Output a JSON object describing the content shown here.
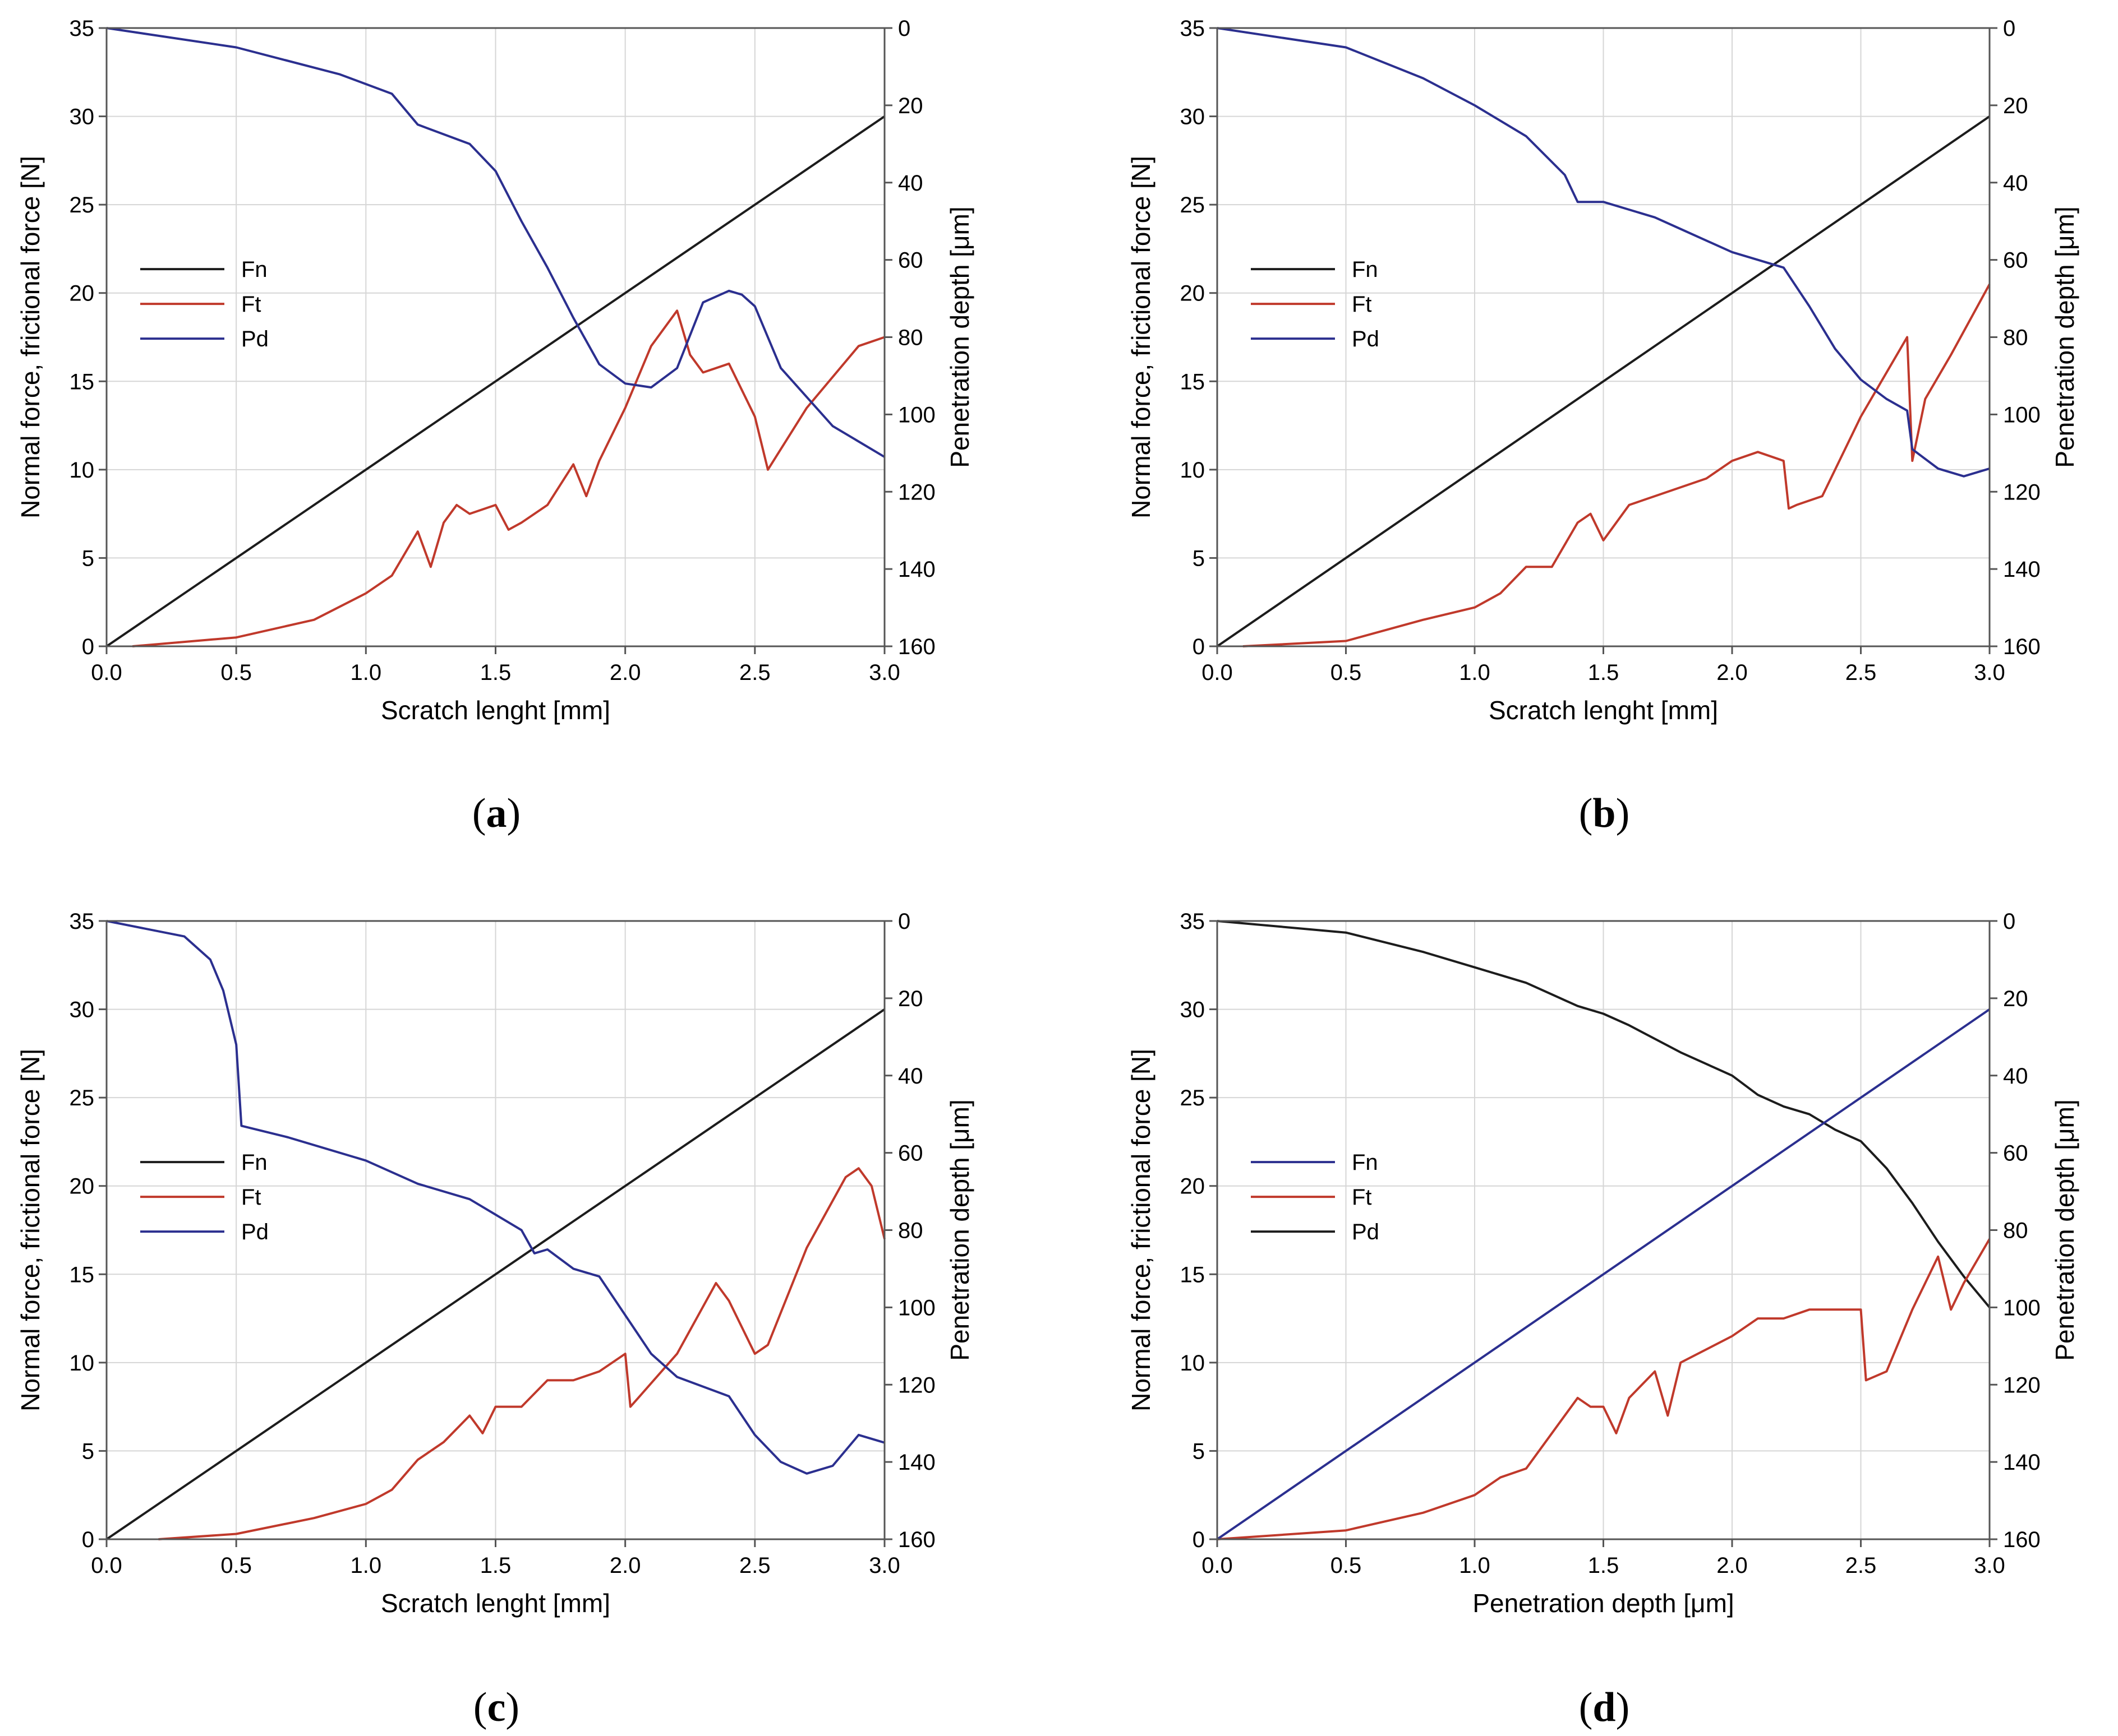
{
  "figure": {
    "panels": [
      {
        "id": "a",
        "caption_prefix": "(",
        "caption_letter": "a",
        "caption_suffix": ")"
      },
      {
        "id": "b",
        "caption_prefix": "(",
        "caption_letter": "b",
        "caption_suffix": ")"
      },
      {
        "id": "c",
        "caption_prefix": "(",
        "caption_letter": "c",
        "caption_suffix": ")"
      },
      {
        "id": "d",
        "caption_prefix": "(",
        "caption_letter": "d",
        "caption_suffix": ")"
      }
    ]
  },
  "chart_data": [
    {
      "panel": "a",
      "type": "line",
      "xlabel": "Scratch lenght [mm]",
      "ylabel": "Normal force, frictional force [N]",
      "y2label": "Penetration depth [μm]",
      "xlim": [
        0,
        3
      ],
      "ylim": [
        0,
        35
      ],
      "y2lim": [
        0,
        160
      ],
      "y2_inverted": true,
      "xticks": [
        "0.0",
        "0.5",
        "1.0",
        "1.5",
        "2.0",
        "2.5",
        "3.0"
      ],
      "yticks": [
        "0",
        "5",
        "10",
        "15",
        "20",
        "25",
        "30",
        "35"
      ],
      "y2ticks": [
        "0",
        "20",
        "40",
        "60",
        "80",
        "100",
        "120",
        "140",
        "160"
      ],
      "legend": [
        "Fn",
        "Ft",
        "Pd"
      ],
      "colors": {
        "Fn": "#1c1c1c",
        "Ft": "#c0392b",
        "Pd": "#2b2f8f"
      },
      "series": [
        {
          "name": "Fn",
          "x": [
            0,
            3.0
          ],
          "values": [
            0,
            30
          ]
        },
        {
          "name": "Ft",
          "x": [
            0.1,
            0.5,
            0.8,
            1.0,
            1.1,
            1.2,
            1.25,
            1.3,
            1.35,
            1.4,
            1.5,
            1.55,
            1.6,
            1.7,
            1.8,
            1.85,
            1.9,
            2.0,
            2.1,
            2.2,
            2.25,
            2.3,
            2.4,
            2.5,
            2.55,
            2.7,
            2.9,
            3.0
          ],
          "values": [
            0,
            0.5,
            1.5,
            3.0,
            4.0,
            6.5,
            4.5,
            7.0,
            8.0,
            7.5,
            8.0,
            6.6,
            7.0,
            8.0,
            10.3,
            8.5,
            10.5,
            13.5,
            17.0,
            19.0,
            16.5,
            15.5,
            16.0,
            13.0,
            10.0,
            13.5,
            17.0,
            17.5
          ]
        },
        {
          "name": "Pd",
          "axis": "y2",
          "x": [
            0,
            0.5,
            0.9,
            1.1,
            1.2,
            1.4,
            1.5,
            1.6,
            1.7,
            1.8,
            1.85,
            1.9,
            2.0,
            2.1,
            2.2,
            2.3,
            2.4,
            2.45,
            2.5,
            2.6,
            2.8,
            3.0
          ],
          "values": [
            0,
            5,
            12,
            17,
            25,
            30,
            37,
            50,
            62,
            75,
            81,
            87,
            92,
            93,
            88,
            71,
            68,
            69,
            72,
            88,
            103,
            111
          ]
        }
      ]
    },
    {
      "panel": "b",
      "type": "line",
      "xlabel": "Scratch lenght [mm]",
      "ylabel": "Normal force, frictional force [N]",
      "y2label": "Penetration depth [μm]",
      "xlim": [
        0,
        3
      ],
      "ylim": [
        0,
        35
      ],
      "y2lim": [
        0,
        160
      ],
      "y2_inverted": true,
      "xticks": [
        "0.0",
        "0.5",
        "1.0",
        "1.5",
        "2.0",
        "2.5",
        "3.0"
      ],
      "yticks": [
        "0",
        "5",
        "10",
        "15",
        "20",
        "25",
        "30",
        "35"
      ],
      "y2ticks": [
        "0",
        "20",
        "40",
        "60",
        "80",
        "100",
        "120",
        "140",
        "160"
      ],
      "legend": [
        "Fn",
        "Ft",
        "Pd"
      ],
      "colors": {
        "Fn": "#1c1c1c",
        "Ft": "#c0392b",
        "Pd": "#2b2f8f"
      },
      "series": [
        {
          "name": "Fn",
          "x": [
            0,
            3.0
          ],
          "values": [
            0,
            30
          ]
        },
        {
          "name": "Ft",
          "x": [
            0.1,
            0.5,
            0.8,
            1.0,
            1.1,
            1.2,
            1.3,
            1.4,
            1.45,
            1.5,
            1.6,
            1.7,
            1.8,
            1.9,
            2.0,
            2.1,
            2.2,
            2.22,
            2.25,
            2.35,
            2.5,
            2.6,
            2.68,
            2.7,
            2.75,
            2.85,
            3.0
          ],
          "values": [
            0,
            0.3,
            1.5,
            2.2,
            3.0,
            4.5,
            4.5,
            7.0,
            7.5,
            6.0,
            8.0,
            8.5,
            9.0,
            9.5,
            10.5,
            11.0,
            10.5,
            7.8,
            8.0,
            8.5,
            13.0,
            15.5,
            17.5,
            10.5,
            14.0,
            16.5,
            20.5
          ]
        },
        {
          "name": "Pd",
          "axis": "y2",
          "x": [
            0,
            0.5,
            0.8,
            1.0,
            1.2,
            1.35,
            1.4,
            1.5,
            1.6,
            1.7,
            1.8,
            1.9,
            2.0,
            2.1,
            2.2,
            2.3,
            2.4,
            2.5,
            2.6,
            2.68,
            2.7,
            2.8,
            2.9,
            3.0
          ],
          "values": [
            0,
            5,
            13,
            20,
            28,
            38,
            45,
            45,
            47,
            49,
            52,
            55,
            58,
            60,
            62,
            72,
            83,
            91,
            96,
            99,
            109,
            114,
            116,
            114
          ]
        }
      ]
    },
    {
      "panel": "c",
      "type": "line",
      "xlabel": "Scratch lenght [mm]",
      "ylabel": "Normal force, frictional force [N]",
      "y2label": "Penetration depth [μm]",
      "xlim": [
        0,
        3
      ],
      "ylim": [
        0,
        35
      ],
      "y2lim": [
        0,
        160
      ],
      "y2_inverted": true,
      "xticks": [
        "0.0",
        "0.5",
        "1.0",
        "1.5",
        "2.0",
        "2.5",
        "3.0"
      ],
      "yticks": [
        "0",
        "5",
        "10",
        "15",
        "20",
        "25",
        "30",
        "35"
      ],
      "y2ticks": [
        "0",
        "20",
        "40",
        "60",
        "80",
        "100",
        "120",
        "140",
        "160"
      ],
      "legend": [
        "Fn",
        "Ft",
        "Pd"
      ],
      "colors": {
        "Fn": "#1c1c1c",
        "Ft": "#c0392b",
        "Pd": "#2b2f8f"
      },
      "series": [
        {
          "name": "Fn",
          "x": [
            0,
            3.0
          ],
          "values": [
            0,
            30
          ]
        },
        {
          "name": "Ft",
          "x": [
            0.2,
            0.5,
            0.8,
            1.0,
            1.1,
            1.2,
            1.3,
            1.4,
            1.45,
            1.5,
            1.6,
            1.7,
            1.8,
            1.9,
            2.0,
            2.02,
            2.05,
            2.2,
            2.35,
            2.4,
            2.5,
            2.55,
            2.7,
            2.85,
            2.9,
            2.95,
            3.0
          ],
          "values": [
            0,
            0.3,
            1.2,
            2.0,
            2.8,
            4.5,
            5.5,
            7.0,
            6.0,
            7.5,
            7.5,
            9.0,
            9.0,
            9.5,
            10.5,
            7.5,
            8.0,
            10.5,
            14.5,
            13.5,
            10.5,
            11.0,
            16.5,
            20.5,
            21.0,
            20.0,
            17.0
          ]
        },
        {
          "name": "Pd",
          "axis": "y2",
          "x": [
            0,
            0.3,
            0.4,
            0.45,
            0.5,
            0.52,
            0.7,
            1.0,
            1.2,
            1.4,
            1.5,
            1.6,
            1.65,
            1.7,
            1.8,
            1.9,
            2.0,
            2.1,
            2.2,
            2.4,
            2.5,
            2.6,
            2.7,
            2.8,
            2.9,
            3.0
          ],
          "values": [
            0,
            4,
            10,
            18,
            32,
            53,
            56,
            62,
            68,
            72,
            76,
            80,
            86,
            85,
            90,
            92,
            102,
            112,
            118,
            123,
            133,
            140,
            143,
            141,
            133,
            135
          ]
        }
      ]
    },
    {
      "panel": "d",
      "type": "line",
      "xlabel": "Penetration depth [μm]",
      "ylabel": "Normal force, frictional force [N]",
      "y2label": "Penetration depth [μm]",
      "xlim": [
        0,
        3
      ],
      "ylim": [
        0,
        35
      ],
      "y2lim": [
        0,
        160
      ],
      "y2_inverted": true,
      "xticks": [
        "0.0",
        "0.5",
        "1.0",
        "1.5",
        "2.0",
        "2.5",
        "3.0"
      ],
      "yticks": [
        "0",
        "5",
        "10",
        "15",
        "20",
        "25",
        "30",
        "35"
      ],
      "y2ticks": [
        "0",
        "20",
        "40",
        "60",
        "80",
        "100",
        "120",
        "140",
        "160"
      ],
      "legend": [
        "Fn",
        "Ft",
        "Pd"
      ],
      "colors": {
        "Fn": "#2b2f8f",
        "Ft": "#c0392b",
        "Pd": "#1c1c1c"
      },
      "series": [
        {
          "name": "Pd",
          "axis": "y2",
          "x": [
            0,
            0.5,
            0.8,
            1.0,
            1.2,
            1.4,
            1.5,
            1.6,
            1.8,
            2.0,
            2.1,
            2.2,
            2.3,
            2.4,
            2.5,
            2.6,
            2.7,
            2.8,
            2.9,
            3.0
          ],
          "values": [
            0,
            3,
            8,
            12,
            16,
            22,
            24,
            27,
            34,
            40,
            45,
            48,
            50,
            54,
            57,
            64,
            73,
            83,
            92,
            100
          ]
        },
        {
          "name": "Ft",
          "x": [
            0,
            0.5,
            0.8,
            1.0,
            1.1,
            1.2,
            1.3,
            1.4,
            1.45,
            1.5,
            1.55,
            1.6,
            1.7,
            1.75,
            1.8,
            2.0,
            2.1,
            2.2,
            2.3,
            2.4,
            2.5,
            2.52,
            2.6,
            2.7,
            2.8,
            2.85,
            2.9,
            3.0
          ],
          "values": [
            0,
            0.5,
            1.5,
            2.5,
            3.5,
            4.0,
            6.0,
            8.0,
            7.5,
            7.5,
            6.0,
            8.0,
            9.5,
            7.0,
            10.0,
            11.5,
            12.5,
            12.5,
            13.0,
            13.0,
            13.0,
            9.0,
            9.5,
            13.0,
            16.0,
            13.0,
            14.5,
            17.0
          ]
        },
        {
          "name": "Fn",
          "x": [
            0,
            3.0
          ],
          "values": [
            0,
            30
          ]
        }
      ]
    }
  ]
}
